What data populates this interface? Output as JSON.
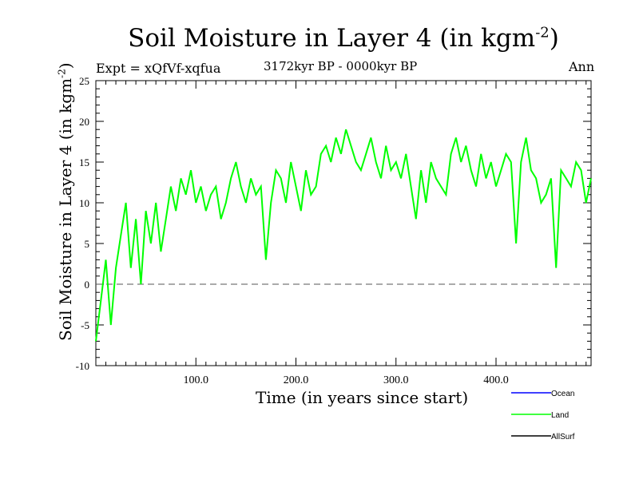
{
  "chart_data": {
    "type": "line",
    "title": "Soil Moisture in Layer 4 (in kgm",
    "title_sup": "-2",
    "title_end": ")",
    "subtitle": "3172kyr BP - 0000kyr BP",
    "expt_label": "Expt = xQfVf-xqfua",
    "season": "Ann",
    "xlabel": "Time (in years since start)",
    "ylabel": "Soil Moisture in Layer 4 (in kgm",
    "ylabel_sup": "-2",
    "ylabel_end": ")",
    "xlim": [
      0,
      495
    ],
    "ylim": [
      -10,
      25
    ],
    "xticks": [
      100,
      200,
      300,
      400
    ],
    "xtick_labels": [
      "100.0",
      "200.0",
      "300.0",
      "400.0"
    ],
    "yticks": [
      -10,
      -5,
      0,
      5,
      10,
      15,
      20,
      25
    ],
    "ytick_labels": [
      "-10",
      "-5",
      "0",
      "5",
      "10",
      "15",
      "20",
      "25"
    ],
    "reference_line": 0,
    "legend": [
      {
        "name": "Ocean",
        "color": "#0000ff"
      },
      {
        "name": "Land",
        "color": "#00ff00"
      },
      {
        "name": "AllSurf",
        "color": "#000000"
      }
    ],
    "series": [
      {
        "name": "Land",
        "color": "#00ff00",
        "x": [
          0,
          5,
          10,
          15,
          20,
          25,
          30,
          35,
          40,
          45,
          50,
          55,
          60,
          65,
          70,
          75,
          80,
          85,
          90,
          95,
          100,
          105,
          110,
          115,
          120,
          125,
          130,
          135,
          140,
          145,
          150,
          155,
          160,
          165,
          170,
          175,
          180,
          185,
          190,
          195,
          200,
          205,
          210,
          215,
          220,
          225,
          230,
          235,
          240,
          245,
          250,
          255,
          260,
          265,
          270,
          275,
          280,
          285,
          290,
          295,
          300,
          305,
          310,
          315,
          320,
          325,
          330,
          335,
          340,
          345,
          350,
          355,
          360,
          365,
          370,
          375,
          380,
          385,
          390,
          395,
          400,
          405,
          410,
          415,
          420,
          425,
          430,
          435,
          440,
          445,
          450,
          455,
          460,
          465,
          470,
          475,
          480,
          485,
          490,
          495
        ],
        "values": [
          -7,
          -2,
          3,
          -5,
          2,
          6,
          10,
          2,
          8,
          0,
          9,
          5,
          10,
          4,
          8,
          12,
          9,
          13,
          11,
          14,
          10,
          12,
          9,
          11,
          12,
          8,
          10,
          13,
          15,
          12,
          10,
          13,
          11,
          12,
          3,
          10,
          14,
          13,
          10,
          15,
          12,
          9,
          14,
          11,
          12,
          16,
          17,
          15,
          18,
          16,
          19,
          17,
          15,
          14,
          16,
          18,
          15,
          13,
          17,
          14,
          15,
          13,
          16,
          12,
          8,
          14,
          10,
          15,
          13,
          12,
          11,
          16,
          18,
          15,
          17,
          14,
          12,
          16,
          13,
          15,
          12,
          14,
          16,
          15,
          5,
          15,
          18,
          14,
          13,
          10,
          11,
          13,
          2,
          14,
          13,
          12,
          15,
          14,
          10,
          13
        ]
      }
    ]
  }
}
